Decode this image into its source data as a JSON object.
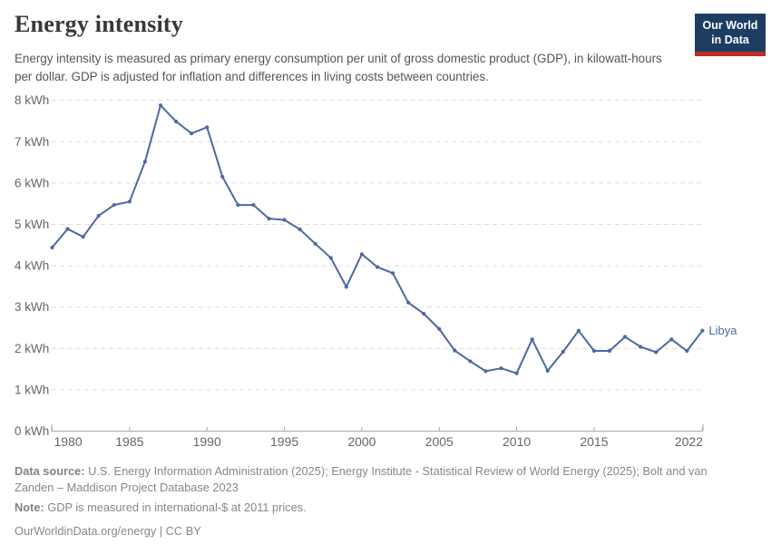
{
  "header": {
    "title": "Energy intensity",
    "subtitle": "Energy intensity is measured as primary energy consumption per unit of gross domestic product (GDP), in kilowatt-hours per dollar. GDP is adjusted for inflation and differences in living costs between countries.",
    "logo": {
      "line1": "Our World",
      "line2": "in Data",
      "bg_color": "#1d3d63",
      "accent_color": "#bf2b26"
    }
  },
  "chart_data": {
    "type": "line",
    "title": "Energy intensity",
    "ylabel": "",
    "xlabel": "",
    "unit_suffix": " kWh",
    "xlim": [
      1980,
      2022
    ],
    "ylim": [
      0,
      8
    ],
    "x_ticks": [
      1980,
      1985,
      1990,
      1995,
      2000,
      2005,
      2010,
      2015,
      2022
    ],
    "y_ticks": [
      0,
      1,
      2,
      3,
      4,
      5,
      6,
      7,
      8
    ],
    "grid": "horizontal-dashed",
    "legend_position": "end-of-line-label",
    "series": [
      {
        "name": "Libya",
        "color": "#4c69a1",
        "x": [
          1980,
          1981,
          1982,
          1983,
          1984,
          1985,
          1986,
          1987,
          1988,
          1989,
          1990,
          1991,
          1992,
          1993,
          1994,
          1995,
          1996,
          1997,
          1998,
          1999,
          2000,
          2001,
          2002,
          2003,
          2004,
          2005,
          2006,
          2007,
          2008,
          2009,
          2010,
          2011,
          2012,
          2013,
          2014,
          2015,
          2016,
          2017,
          2018,
          2019,
          2020,
          2021,
          2022
        ],
        "values": [
          4.44,
          4.89,
          4.7,
          5.21,
          5.47,
          5.55,
          6.52,
          7.88,
          7.49,
          7.2,
          7.35,
          6.15,
          5.47,
          5.47,
          5.14,
          5.11,
          4.88,
          4.53,
          4.19,
          3.49,
          4.28,
          3.97,
          3.82,
          3.11,
          2.84,
          2.47,
          1.95,
          1.69,
          1.45,
          1.52,
          1.4,
          2.22,
          1.46,
          1.92,
          2.43,
          1.94,
          1.94,
          2.28,
          2.04,
          1.91,
          2.22,
          1.94,
          2.43
        ]
      }
    ]
  },
  "footer": {
    "datasource_label": "Data source:",
    "datasource_text": " U.S. Energy Information Administration (2025); Energy Institute - Statistical Review of World Energy (2025); Bolt and van Zanden – Maddison Project Database 2023",
    "note_label": "Note:",
    "note_text": " GDP is measured in international-$ at 2011 prices.",
    "citation": "OurWorldinData.org/energy | CC BY"
  }
}
